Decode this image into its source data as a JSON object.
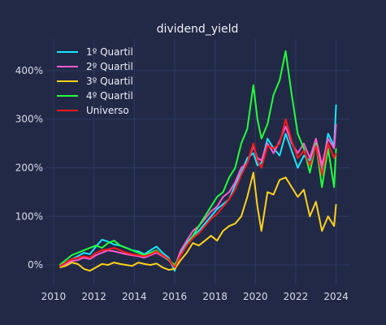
{
  "chart_data": {
    "type": "line",
    "title": "dividend_yield",
    "xlabel": "",
    "ylabel": "",
    "xlim": [
      2009.6,
      2024.7
    ],
    "ylim": [
      -40,
      465
    ],
    "xticks": [
      2010,
      2012,
      2014,
      2016,
      2018,
      2020,
      2022,
      2024
    ],
    "yticks": [
      0,
      100,
      200,
      300,
      400
    ],
    "ytick_suffix": "%",
    "grid": true,
    "legend_position": "top-left",
    "colors": {
      "background": "#212946",
      "grid": "#2e3a60",
      "text": "#d9dde8"
    },
    "series": [
      {
        "name": "1º Quartil",
        "color": "#19e6ff",
        "x": [
          2010.3,
          2010.6,
          2010.9,
          2011.2,
          2011.5,
          2011.8,
          2012.1,
          2012.4,
          2012.7,
          2013.0,
          2013.3,
          2013.6,
          2013.9,
          2014.2,
          2014.5,
          2014.8,
          2015.1,
          2015.4,
          2015.7,
          2016.0,
          2016.3,
          2016.6,
          2016.9,
          2017.2,
          2017.5,
          2017.8,
          2018.1,
          2018.4,
          2018.7,
          2019.0,
          2019.3,
          2019.6,
          2019.9,
          2020.1,
          2020.3,
          2020.6,
          2020.9,
          2021.2,
          2021.5,
          2021.8,
          2022.1,
          2022.4,
          2022.7,
          2023.0,
          2023.3,
          2023.6,
          2023.9,
          2024.0
        ],
        "y": [
          -2,
          5,
          12,
          18,
          25,
          22,
          38,
          52,
          48,
          42,
          40,
          35,
          30,
          28,
          22,
          30,
          38,
          25,
          15,
          -12,
          25,
          45,
          60,
          70,
          85,
          100,
          115,
          125,
          135,
          165,
          190,
          220,
          230,
          205,
          210,
          260,
          240,
          225,
          270,
          235,
          200,
          225,
          215,
          250,
          190,
          270,
          245,
          330
        ]
      },
      {
        "name": "2º Quartil",
        "color": "#ff5bd0",
        "x": [
          2010.3,
          2010.6,
          2010.9,
          2011.2,
          2011.5,
          2011.8,
          2012.1,
          2012.4,
          2012.7,
          2013.0,
          2013.3,
          2013.6,
          2013.9,
          2014.2,
          2014.5,
          2014.8,
          2015.1,
          2015.4,
          2015.7,
          2016.0,
          2016.3,
          2016.6,
          2016.9,
          2017.2,
          2017.5,
          2017.8,
          2018.1,
          2018.4,
          2018.7,
          2019.0,
          2019.3,
          2019.6,
          2019.9,
          2020.1,
          2020.3,
          2020.6,
          2020.9,
          2021.2,
          2021.5,
          2021.8,
          2022.1,
          2022.4,
          2022.7,
          2023.0,
          2023.3,
          2023.6,
          2023.9,
          2024.0
        ],
        "y": [
          -3,
          2,
          8,
          10,
          15,
          12,
          20,
          25,
          30,
          28,
          25,
          22,
          20,
          18,
          15,
          20,
          25,
          18,
          10,
          -5,
          30,
          50,
          70,
          80,
          95,
          110,
          120,
          140,
          150,
          170,
          200,
          210,
          245,
          220,
          215,
          250,
          230,
          255,
          285,
          250,
          230,
          250,
          220,
          260,
          205,
          260,
          240,
          290
        ]
      },
      {
        "name": "3º Quartil",
        "color": "#ffd21a",
        "x": [
          2010.3,
          2010.6,
          2010.9,
          2011.2,
          2011.5,
          2011.8,
          2012.1,
          2012.4,
          2012.7,
          2013.0,
          2013.3,
          2013.6,
          2013.9,
          2014.2,
          2014.5,
          2014.8,
          2015.1,
          2015.4,
          2015.7,
          2016.0,
          2016.3,
          2016.6,
          2016.9,
          2017.2,
          2017.5,
          2017.8,
          2018.1,
          2018.4,
          2018.7,
          2019.0,
          2019.3,
          2019.6,
          2019.9,
          2020.1,
          2020.3,
          2020.6,
          2020.9,
          2021.2,
          2021.5,
          2021.8,
          2022.1,
          2022.4,
          2022.7,
          2023.0,
          2023.3,
          2023.6,
          2023.9,
          2024.0
        ],
        "y": [
          -5,
          -2,
          5,
          2,
          -8,
          -12,
          -5,
          2,
          0,
          5,
          2,
          0,
          -2,
          5,
          2,
          0,
          3,
          -5,
          -10,
          -8,
          10,
          25,
          45,
          40,
          50,
          60,
          50,
          70,
          80,
          85,
          100,
          140,
          190,
          120,
          70,
          150,
          145,
          175,
          180,
          160,
          140,
          155,
          100,
          130,
          70,
          100,
          80,
          125
        ]
      },
      {
        "name": "4º Quartil",
        "color": "#22ff3a",
        "x": [
          2010.3,
          2010.6,
          2010.9,
          2011.2,
          2011.5,
          2011.8,
          2012.1,
          2012.4,
          2012.7,
          2013.0,
          2013.3,
          2013.6,
          2013.9,
          2014.2,
          2014.5,
          2014.8,
          2015.1,
          2015.4,
          2015.7,
          2016.0,
          2016.3,
          2016.6,
          2016.9,
          2017.2,
          2017.5,
          2017.8,
          2018.1,
          2018.4,
          2018.7,
          2019.0,
          2019.3,
          2019.6,
          2019.9,
          2020.1,
          2020.3,
          2020.6,
          2020.9,
          2021.2,
          2021.5,
          2021.8,
          2022.1,
          2022.4,
          2022.7,
          2023.0,
          2023.3,
          2023.6,
          2023.9,
          2024.0
        ],
        "y": [
          0,
          10,
          20,
          25,
          30,
          35,
          40,
          35,
          45,
          50,
          40,
          35,
          30,
          25,
          20,
          25,
          30,
          20,
          10,
          0,
          20,
          40,
          60,
          80,
          100,
          120,
          140,
          150,
          180,
          200,
          250,
          280,
          370,
          300,
          260,
          290,
          350,
          380,
          440,
          350,
          270,
          240,
          190,
          250,
          160,
          240,
          160,
          240
        ]
      },
      {
        "name": "Universo",
        "color": "#ff1a1a",
        "x": [
          2010.3,
          2010.6,
          2010.9,
          2011.2,
          2011.5,
          2011.8,
          2012.1,
          2012.4,
          2012.7,
          2013.0,
          2013.3,
          2013.6,
          2013.9,
          2014.2,
          2014.5,
          2014.8,
          2015.1,
          2015.4,
          2015.7,
          2016.0,
          2016.3,
          2016.6,
          2016.9,
          2017.2,
          2017.5,
          2017.8,
          2018.1,
          2018.4,
          2018.7,
          2019.0,
          2019.3,
          2019.6,
          2019.9,
          2020.1,
          2020.3,
          2020.6,
          2020.9,
          2021.2,
          2021.5,
          2021.8,
          2022.1,
          2022.4,
          2022.7,
          2023.0,
          2023.3,
          2023.6,
          2023.9,
          2024.0
        ],
        "y": [
          -3,
          5,
          12,
          15,
          18,
          15,
          25,
          30,
          32,
          35,
          30,
          25,
          22,
          20,
          18,
          22,
          28,
          20,
          12,
          -5,
          20,
          40,
          55,
          65,
          80,
          95,
          105,
          120,
          135,
          155,
          185,
          210,
          250,
          215,
          200,
          245,
          240,
          250,
          300,
          255,
          220,
          235,
          205,
          245,
          185,
          250,
          220,
          230
        ]
      }
    ]
  }
}
